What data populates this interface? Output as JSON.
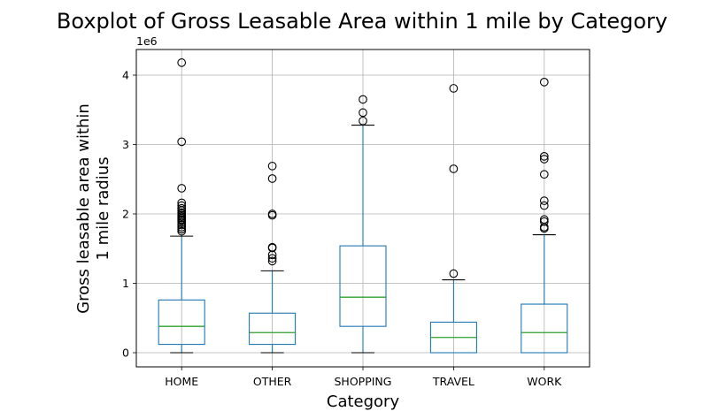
{
  "chart_data": {
    "type": "boxplot",
    "title": "Boxplot of Gross Leasable Area within 1 mile by Category",
    "xlabel": "Category",
    "ylabel_lines": [
      "Gross leasable area within",
      "1 mile radius"
    ],
    "y_scale_label": "1e6",
    "y_tick_labels": [
      "0",
      "1",
      "2",
      "3",
      "4"
    ],
    "y_tick_values": [
      0,
      1,
      2,
      3,
      4
    ],
    "ylim": [
      -0.2,
      4.4
    ],
    "grid": true,
    "colors": {
      "box": "#1f77b4",
      "median": "#2ca02c",
      "whisker_cap": "#000000",
      "flier": "#000000",
      "grid": "#b0b0b0"
    },
    "categories": [
      "HOME",
      "OTHER",
      "SHOPPING",
      "TRAVEL",
      "WORK"
    ],
    "boxes": [
      {
        "q1": 0.12,
        "median": 0.38,
        "q3": 0.76,
        "whislo": 0.0,
        "whishi": 1.68,
        "fliers": [
          1.75,
          1.78,
          1.81,
          1.84,
          1.87,
          1.9,
          1.92,
          1.94,
          1.96,
          1.98,
          2.0,
          2.02,
          2.05,
          2.08,
          2.12,
          2.16,
          2.37,
          3.04,
          4.18
        ]
      },
      {
        "q1": 0.12,
        "median": 0.29,
        "q3": 0.57,
        "whislo": 0.0,
        "whishi": 1.18,
        "fliers": [
          1.32,
          1.36,
          1.41,
          1.51,
          1.52,
          1.98,
          2.0,
          2.51,
          2.69
        ]
      },
      {
        "q1": 0.38,
        "median": 0.8,
        "q3": 1.54,
        "whislo": 0.0,
        "whishi": 3.28,
        "fliers": [
          3.34,
          3.46,
          3.65
        ]
      },
      {
        "q1": 0.0,
        "median": 0.22,
        "q3": 0.44,
        "whislo": 0.0,
        "whishi": 1.05,
        "fliers": [
          1.14,
          2.65,
          3.81
        ]
      },
      {
        "q1": 0.0,
        "median": 0.29,
        "q3": 0.7,
        "whislo": 0.0,
        "whishi": 1.7,
        "fliers": [
          1.79,
          1.81,
          1.89,
          1.92,
          2.12,
          2.19,
          2.57,
          2.79,
          2.83,
          3.9
        ]
      }
    ]
  }
}
